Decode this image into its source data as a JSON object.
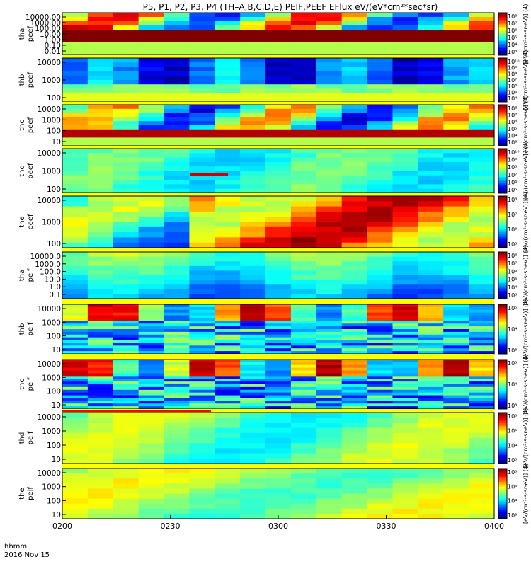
{
  "chart_data": {
    "type": "heatmap",
    "title": "P5, P1, P2, P3, P4 (TH–A,B,C,D,E) PEIF,PEEF EFlux eV/(eV*cm²*sec*sr)",
    "x_ticks": [
      "0200",
      "0230",
      "0300",
      "0330",
      "0400"
    ],
    "x_label_left": [
      "hhmm",
      "2016 Nov 15"
    ],
    "panels": [
      {
        "probe": "tha",
        "species": "peef",
        "ticks": [
          "10000.00",
          "1000.00",
          "100.00",
          "10.00",
          "1.00",
          "0.10",
          "0.01"
        ],
        "cbar_ticks": [
          "10⁸",
          "10⁷",
          "10⁶",
          "10⁵",
          "10⁴",
          "10³"
        ],
        "cbar_label": "[eV/(cm²-s-sr-eV)] (4)"
      },
      {
        "probe": "thb",
        "species": "peef",
        "ticks": [
          "10000",
          "1000",
          "100"
        ],
        "cbar_ticks": [
          "10¹⁰",
          "10⁹",
          "10⁸",
          "10⁷",
          "10⁶",
          "10⁵",
          "10⁴"
        ],
        "cbar_label": "[eV/(cm²-s-sr-eV)] (4)"
      },
      {
        "probe": "thc",
        "species": "peef",
        "ticks": [
          "10000",
          "1000",
          "100",
          "10"
        ],
        "cbar_ticks": [
          "10⁸",
          "10⁷",
          "10⁶",
          "10⁵",
          "10⁴",
          "10³"
        ],
        "cbar_label": "[eV/(cm²-s-sr-eV)] (4)"
      },
      {
        "probe": "thd",
        "species": "peef",
        "ticks": [
          "10000",
          "1000",
          "100"
        ],
        "cbar_ticks": [
          "10¹⁰",
          "10⁹",
          "10⁸",
          "10⁷",
          "10⁶",
          "10⁵"
        ],
        "cbar_label": "[eV/(cm²-s-sr-eV)] (4)"
      },
      {
        "probe": "the",
        "species": "peef",
        "ticks": [
          "10000",
          "1000",
          "100"
        ],
        "cbar_ticks": [
          "10⁸",
          "10⁷",
          "10⁶",
          "10⁵"
        ],
        "cbar_label": "[eV/(cm²-s-sr-eV)] (4)"
      },
      {
        "probe": "tha",
        "species": "peif",
        "ticks": [
          "10000.0",
          "1000.0",
          "100.0",
          "10.0",
          "1.0",
          "0.1"
        ],
        "cbar_ticks": [
          "10⁸",
          "10⁷",
          "10⁶",
          "10⁵",
          "10⁴",
          "10³"
        ],
        "cbar_label": "[eV/(cm²-s-sr-eV)] (4)"
      },
      {
        "probe": "thb",
        "species": "peif",
        "ticks": [
          "10000",
          "1000",
          "100",
          "10"
        ],
        "cbar_ticks": [
          "10⁵",
          "10⁴",
          "10³"
        ],
        "cbar_label": "[eV/(cm²-s-sr-eV)] (4)"
      },
      {
        "probe": "thc",
        "species": "peif",
        "ticks": [
          "10000",
          "1000",
          "100",
          "10"
        ],
        "cbar_ticks": [
          "10⁵",
          "10⁴",
          "10³"
        ],
        "cbar_label": "[eV/(cm²-s-sr-eV)] (4)"
      },
      {
        "probe": "thd",
        "species": "peif",
        "ticks": [
          "10000",
          "1000",
          "100",
          "10"
        ],
        "cbar_ticks": [
          "10⁶",
          "10⁵",
          "10⁴",
          "10³"
        ],
        "cbar_label": "[eV/(cm²-s-sr-eV)] (4)"
      },
      {
        "probe": "the",
        "species": "peif",
        "ticks": [
          "10000",
          "1000",
          "100",
          "10"
        ],
        "cbar_ticks": [
          "10⁶",
          "10⁵",
          "10⁴",
          "10³"
        ],
        "cbar_label": "[eV/(cm²-s-sr-eV)] (4)"
      }
    ],
    "colorbar_title": "[eV/(cm²-s-sr-eV)] (4)",
    "grid": false,
    "legend": "none"
  },
  "colors": {
    "frame": "#000000",
    "background": "#ffffff",
    "sat_red": "#ff0000",
    "sat_yellow": "#ffff00"
  }
}
